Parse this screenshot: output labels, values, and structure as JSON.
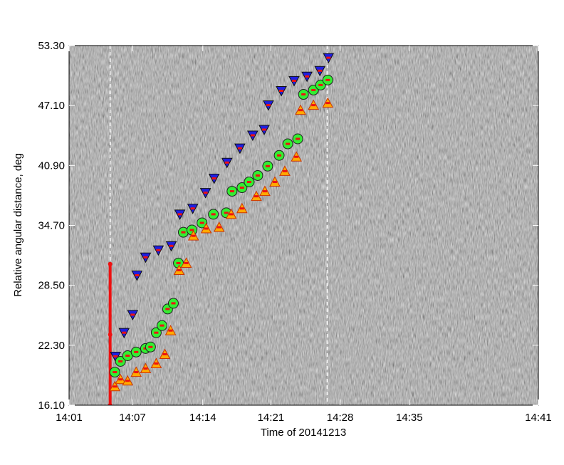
{
  "chart_data": {
    "type": "scatter",
    "x_label": "Time of 20141213",
    "y_label": "Relative angular distance, deg",
    "xlim": [
      841,
      881
    ],
    "xticks": [
      {
        "value": 841,
        "label": "14:01"
      },
      {
        "value": 846.4,
        "label": "14:07"
      },
      {
        "value": 852.4,
        "label": "14:14"
      },
      {
        "value": 858.2,
        "label": "14:21"
      },
      {
        "value": 864.1,
        "label": "14:28"
      },
      {
        "value": 870.0,
        "label": "14:35"
      },
      {
        "value": 881,
        "label": "14:41"
      }
    ],
    "ylim": [
      16.1,
      53.3
    ],
    "yticks": [
      {
        "value": 16.1,
        "label": "16.10"
      },
      {
        "value": 22.3,
        "label": "22.30"
      },
      {
        "value": 28.5,
        "label": "28.50"
      },
      {
        "value": 34.7,
        "label": "34.70"
      },
      {
        "value": 40.9,
        "label": "40.90"
      },
      {
        "value": 47.1,
        "label": "47.10"
      },
      {
        "value": 53.3,
        "label": "53.30"
      }
    ],
    "markers": [
      844.5,
      863.0
    ],
    "error_bar": {
      "x": 844.5,
      "y": 23.4,
      "error": 7.3,
      "color": "#ee1111"
    },
    "series": [
      {
        "marker": "triangle-down",
        "color": "#1f1fe0",
        "x": [
          844.96,
          845.69,
          846.42,
          846.79,
          847.52,
          848.61,
          849.71,
          850.44,
          851.54,
          852.63,
          853.36,
          854.46,
          855.56,
          856.65,
          857.63,
          857.99,
          859.09,
          860.18,
          861.28,
          862.38,
          863.11
        ],
        "values": [
          21.15,
          23.6,
          25.46,
          29.54,
          31.4,
          32.14,
          32.58,
          35.85,
          36.45,
          38.08,
          39.56,
          41.2,
          42.68,
          44.02,
          44.61,
          47.14,
          48.62,
          49.66,
          50.11,
          50.7,
          52.04
        ]
      },
      {
        "marker": "circle",
        "color": "#33ee33",
        "x": [
          844.9,
          845.38,
          845.99,
          846.72,
          847.52,
          847.94,
          848.43,
          848.92,
          849.4,
          849.89,
          850.32,
          850.74,
          851.47,
          852.33,
          853.3,
          854.4,
          854.89,
          855.74,
          856.35,
          857.08,
          857.93,
          858.91,
          859.64,
          860.49,
          860.98,
          861.83,
          862.44,
          863.05
        ],
        "values": [
          19.52,
          20.63,
          21.22,
          21.6,
          21.97,
          22.12,
          23.6,
          24.34,
          26.05,
          26.64,
          30.8,
          33.99,
          34.22,
          34.96,
          35.85,
          36.0,
          38.23,
          38.6,
          39.19,
          39.86,
          40.83,
          41.94,
          43.13,
          43.65,
          48.25,
          48.7,
          49.22,
          49.74
        ]
      },
      {
        "marker": "triangle-up",
        "color": "#ffaa00",
        "x": [
          844.9,
          845.38,
          845.99,
          846.72,
          847.52,
          848.43,
          849.16,
          849.65,
          850.38,
          850.99,
          851.6,
          852.69,
          853.79,
          854.82,
          855.74,
          856.96,
          857.69,
          858.54,
          859.39,
          860.37,
          860.73,
          861.83,
          863.05
        ],
        "values": [
          18.03,
          18.77,
          18.62,
          19.52,
          19.89,
          20.41,
          21.37,
          23.82,
          30.06,
          30.8,
          33.62,
          34.37,
          34.51,
          35.85,
          36.45,
          37.71,
          38.23,
          39.19,
          40.31,
          41.79,
          46.62,
          47.14,
          47.36
        ]
      }
    ]
  }
}
